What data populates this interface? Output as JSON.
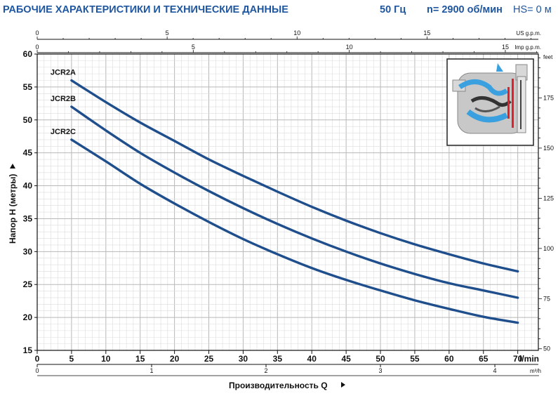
{
  "header": {
    "title": "РАБОЧИЕ ХАРАКТЕРИСТИКИ И ТЕХНИЧЕСКИЕ ДАННЫЕ",
    "frequency": "50 Гц",
    "speed": "n= 2900 об/мин",
    "hs": "HS= 0 м"
  },
  "colors": {
    "curve": "#1f4e8c",
    "header": "#1f56a0",
    "grid": "#c9c9c9"
  },
  "illustration": {
    "icon": "pump-cross-section-icon"
  },
  "chart_data": {
    "type": "line",
    "xlabel": "Производительность Q",
    "ylabel": "Напор H (метры)",
    "x_unit": "l/min",
    "xlim": [
      0,
      73
    ],
    "ylim": [
      15,
      60
    ],
    "x_ticks": [
      0,
      5,
      10,
      15,
      20,
      25,
      30,
      35,
      40,
      45,
      50,
      55,
      60,
      65,
      70
    ],
    "y_ticks": [
      15,
      20,
      25,
      30,
      35,
      40,
      45,
      50,
      55,
      60
    ],
    "secondary_axes": {
      "us_gpm": {
        "label": "US g.p.m.",
        "ticks": [
          0,
          5,
          10,
          15
        ]
      },
      "imp_gpm": {
        "label": "Imp g.p.m.",
        "ticks": [
          0,
          5,
          10,
          15
        ]
      },
      "m3h": {
        "label": "m³/h",
        "ticks": [
          0,
          1,
          2,
          3,
          4
        ]
      },
      "feet": {
        "label": "feet",
        "ticks": [
          50,
          75,
          100,
          125,
          150,
          175
        ]
      }
    },
    "series": [
      {
        "name": "JCR2A",
        "x": [
          5,
          10,
          15,
          20,
          25,
          30,
          35,
          40,
          45,
          50,
          55,
          60,
          65,
          70
        ],
        "y": [
          56,
          52.7,
          49.6,
          46.8,
          44,
          41.5,
          39.1,
          36.8,
          34.7,
          32.8,
          31.1,
          29.6,
          28.2,
          27
        ]
      },
      {
        "name": "JCR2B",
        "x": [
          5,
          10,
          15,
          20,
          25,
          30,
          35,
          40,
          45,
          50,
          55,
          60,
          65,
          70
        ],
        "y": [
          52,
          48.4,
          45,
          42,
          39.2,
          36.6,
          34.2,
          32,
          30,
          28.2,
          26.6,
          25.2,
          24.1,
          23
        ]
      },
      {
        "name": "JCR2C",
        "x": [
          5,
          10,
          15,
          20,
          25,
          30,
          35,
          40,
          45,
          50,
          55,
          60,
          65,
          70
        ],
        "y": [
          47,
          43.7,
          40.3,
          37.3,
          34.5,
          31.9,
          29.6,
          27.5,
          25.7,
          24.1,
          22.6,
          21.3,
          20.1,
          19.2
        ]
      }
    ]
  }
}
